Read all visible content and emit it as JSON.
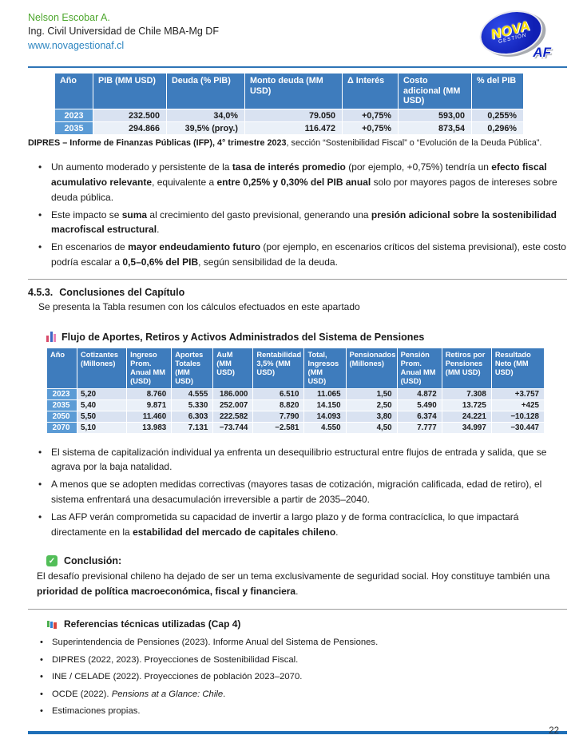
{
  "header": {
    "name": "Nelson Escobar A.",
    "subtitle": "Ing. Civil Universidad de Chile MBA-Mg DF",
    "website": "www.novagestionaf.cl",
    "logo": {
      "top": "NOVA",
      "mid": "GESTIÓN",
      "af": "AF"
    }
  },
  "colors": {
    "accent_blue": "#2E75B6",
    "table_header_blue": "#3E7CBD",
    "year_cell_blue": "#5B9BD5",
    "row_light": "#D9E2F1",
    "row_lighter": "#EAF0F8",
    "name_green": "#4EA72E",
    "check_green": "#52BE58",
    "bottom_rule_blue": "#1E6FB8"
  },
  "debt_table": {
    "columns": [
      "Año",
      "PIB (MM USD)",
      "Deuda (% PIB)",
      "Monto deuda (MM USD)",
      "Δ Interés",
      "Costo adicional (MM USD)",
      "% del PIB"
    ],
    "rows": [
      [
        "2023",
        "232.500",
        "34,0%",
        "79.050",
        "+0,75%",
        "593,00",
        "0,255%"
      ],
      [
        "2035",
        "294.866",
        "39,5% (proy.)",
        "116.472",
        "+0,75%",
        "873,54",
        "0,296%"
      ]
    ],
    "caption": [
      {
        "t": "DIPRES – Informe de Finanzas Públicas (IFP), 4° trimestre 2023",
        "b": 1
      },
      {
        "t": ", sección “Sostenibilidad Fiscal” o “Evolución de la Deuda Pública”."
      }
    ]
  },
  "bullets_fiscal": [
    [
      {
        "t": "Un aumento moderado y persistente de la "
      },
      {
        "t": "tasa de interés promedio",
        "b": 1
      },
      {
        "t": " (por ejemplo, +0,75%) tendría un "
      },
      {
        "t": "efecto fiscal acumulativo relevante",
        "b": 1
      },
      {
        "t": ", equivalente a "
      },
      {
        "t": "entre 0,25% y 0,30% del PIB anual",
        "b": 1
      },
      {
        "t": " solo por mayores pagos de intereses sobre deuda pública."
      }
    ],
    [
      {
        "t": "Este impacto se "
      },
      {
        "t": "suma",
        "b": 1
      },
      {
        "t": " al crecimiento del gasto previsional, generando una "
      },
      {
        "t": "presión adicional sobre la sostenibilidad macrofiscal estructural",
        "b": 1
      },
      {
        "t": "."
      }
    ],
    [
      {
        "t": "En escenarios de "
      },
      {
        "t": "mayor endeudamiento futuro",
        "b": 1
      },
      {
        "t": " (por ejemplo, en escenarios críticos del sistema previsional), este costo podría escalar a "
      },
      {
        "t": "0,5–0,6% del PIB",
        "b": 1
      },
      {
        "t": ", según sensibilidad de la deuda."
      }
    ]
  ],
  "section": {
    "number": "4.5.3.",
    "title": "Conclusiones del Capítulo",
    "intro": "Se presenta la Tabla resumen con los cálculos efectuados en este apartado"
  },
  "pension_table": {
    "title": "Flujo de Aportes, Retiros y Activos Administrados del Sistema de Pensiones",
    "columns": [
      "Año",
      "Cotizantes (Millones)",
      "Ingreso Prom. Anual MM (USD)",
      "Aportes Totales (MM USD)",
      "AuM (MM USD)",
      "Rentabilidad 3,5% (MM USD)",
      "Total, Ingresos (MM USD)",
      "Pensionados (Millones)",
      "Pensión Prom. Anual MM (USD)",
      "Retiros por Pensiones (MM USD)",
      "Resultado Neto (MM USD)"
    ],
    "rows": [
      [
        "2023",
        "5,20",
        "8.760",
        "4.555",
        "186.000",
        "6.510",
        "11.065",
        "1,50",
        "4.872",
        "7.308",
        "+3.757"
      ],
      [
        "2035",
        "5,40",
        "9.871",
        "5.330",
        "252.007",
        "8.820",
        "14.150",
        "2,50",
        "5.490",
        "13.725",
        "+425"
      ],
      [
        "2050",
        "5,50",
        "11.460",
        "6.303",
        "222.582",
        "7.790",
        "14.093",
        "3,80",
        "6.374",
        "24.221",
        "−10.128"
      ],
      [
        "2070",
        "5,10",
        "13.983",
        "7.131",
        "−73.744",
        "−2.581",
        "4.550",
        "4,50",
        "7.777",
        "34.997",
        "−30.447"
      ]
    ]
  },
  "bullets_system": [
    [
      {
        "t": "El sistema de capitalización individual ya enfrenta un desequilibrio estructural entre flujos de entrada y salida, que se agrava por la baja natalidad."
      }
    ],
    [
      {
        "t": "A menos que se adopten medidas correctivas (mayores tasas de cotización, migración calificada, edad de retiro), el sistema enfrentará una desacumulación irreversible a partir de 2035–2040."
      }
    ],
    [
      {
        "t": "Las AFP verán comprometida su capacidad de invertir a largo plazo y de forma contracíclica, lo que impactará directamente en la "
      },
      {
        "t": "estabilidad del mercado de capitales chileno",
        "b": 1
      },
      {
        "t": "."
      }
    ]
  ],
  "conclusion": {
    "heading": "Conclusión:",
    "body": [
      {
        "t": "El desafío previsional chileno ha dejado de ser un tema exclusivamente de seguridad social. Hoy constituye también una "
      },
      {
        "t": "prioridad de política macroeconómica, fiscal y financiera",
        "b": 1
      },
      {
        "t": "."
      }
    ]
  },
  "references": {
    "heading": "Referencias técnicas utilizadas (Cap 4)",
    "items": [
      [
        {
          "t": "Superintendencia de Pensiones (2023). Informe Anual del Sistema de Pensiones."
        }
      ],
      [
        {
          "t": "DIPRES (2022, 2023). Proyecciones de Sostenibilidad Fiscal."
        }
      ],
      [
        {
          "t": "INE / CELADE (2022). Proyecciones de población 2023–2070."
        }
      ],
      [
        {
          "t": "OCDE (2022). "
        },
        {
          "t": "Pensions at a Glance: Chile",
          "i": 1
        },
        {
          "t": "."
        }
      ],
      [
        {
          "t": "Estimaciones propias."
        }
      ]
    ]
  },
  "page": {
    "number": "22"
  }
}
